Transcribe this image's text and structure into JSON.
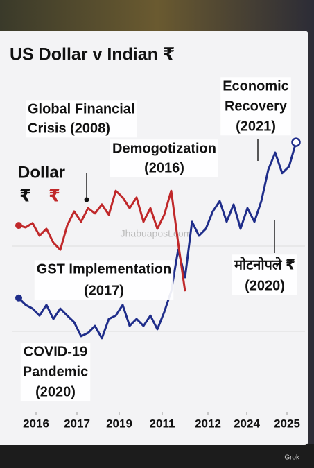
{
  "title": "US Dollar v Indian ₹",
  "watermark": "Jhabuapost.com",
  "credit": "Grok",
  "chart_data": {
    "type": "line",
    "legend_title": "Dollar",
    "x": [
      0,
      1,
      2,
      3,
      4,
      5,
      6,
      7,
      8,
      9,
      10,
      11,
      12,
      13,
      14,
      15,
      16,
      17,
      18,
      19,
      20,
      21,
      22,
      23,
      24,
      25,
      26,
      27,
      28,
      29,
      30,
      31,
      32,
      33,
      34,
      35,
      36,
      37,
      38,
      39,
      40
    ],
    "xlim": [
      0,
      40
    ],
    "ylim": [
      0,
      100
    ],
    "xticks": [
      {
        "value": 2.5,
        "label": "2016"
      },
      {
        "value": 8.4,
        "label": "2017"
      },
      {
        "value": 14.5,
        "label": "2019"
      },
      {
        "value": 20.7,
        "label": "2011"
      },
      {
        "value": 27.3,
        "label": "2012"
      },
      {
        "value": 32.9,
        "label": "2024"
      },
      {
        "value": 38.7,
        "label": "2025"
      }
    ],
    "series": [
      {
        "name": "₹",
        "color": "#1f2d8a",
        "values": [
          31.3,
          29.2,
          28.1,
          26.0,
          29.2,
          25.0,
          28.1,
          26.0,
          24.0,
          19.8,
          20.8,
          22.9,
          19.2,
          25.0,
          26.0,
          29.2,
          22.9,
          25.0,
          22.9,
          26.0,
          21.9,
          27.1,
          33.3,
          45.8,
          37.5,
          54.2,
          50.0,
          52.1,
          57.3,
          60.4,
          54.2,
          59.4,
          52.1,
          58.3,
          54.2,
          60.4,
          69.8,
          75.0,
          68.8,
          70.8,
          78.1
        ]
      },
      {
        "name": "₹",
        "color": "#c0282a",
        "values": [
          53.1,
          52.5,
          53.8,
          50.0,
          52.1,
          47.9,
          45.8,
          53.1,
          57.3,
          54.2,
          58.3,
          56.7,
          59.4,
          56.3,
          63.5,
          61.5,
          58.3,
          61.5,
          54.2,
          58.3,
          52.1,
          56.3,
          63.5,
          47.9,
          33.3,
          null,
          null,
          null,
          null,
          null,
          null,
          null,
          null,
          null,
          null,
          null,
          null,
          null,
          null,
          null,
          null
        ]
      }
    ],
    "annotations": [
      {
        "lines": [
          "Global Financial",
          "Crisis (2008)"
        ]
      },
      {
        "lines": [
          "Demogotization",
          "(2016)"
        ]
      },
      {
        "lines": [
          "Economic",
          "Recovery",
          "(2021)"
        ]
      },
      {
        "lines": [
          "GST Implementation",
          "(2017)"
        ]
      },
      {
        "lines": [
          "मोटनोपले ₹",
          "(2020)"
        ]
      },
      {
        "lines": [
          "COVID-19",
          "Pandemic",
          "(2020)"
        ]
      }
    ]
  }
}
